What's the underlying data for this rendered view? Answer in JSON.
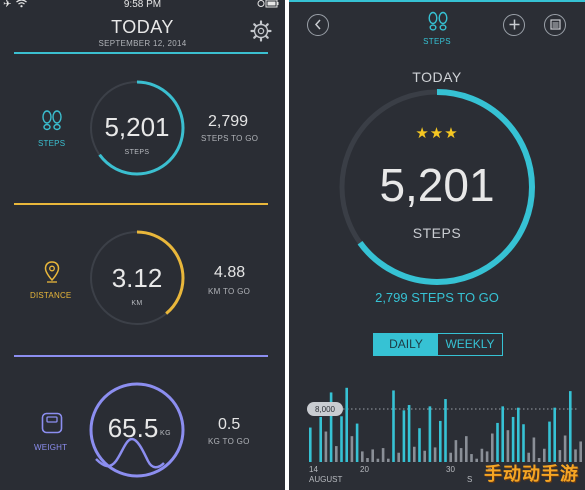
{
  "status_bar": {
    "time": "9:58 PM"
  },
  "left": {
    "title": "TODAY",
    "date": "SEPTEMBER 12, 2014",
    "metrics": [
      {
        "label": "STEPS",
        "value": "5,201",
        "unit": "STEPS",
        "side_value": "2,799",
        "side_label": "STEPS TO GO",
        "color": "#3bbfd0",
        "progress": 0.65,
        "icon": "footprints-icon"
      },
      {
        "label": "DISTANCE",
        "value": "3.12",
        "unit": "KM",
        "side_value": "4.88",
        "side_label": "KM TO GO",
        "color": "#e9b73b",
        "progress": 0.39,
        "icon": "location-pin-icon"
      },
      {
        "label": "WEIGHT",
        "value": "65.5",
        "unit": "KG",
        "side_value": "0.5",
        "side_label": "KG TO GO",
        "color": "#8c8ef0",
        "progress": 1.0,
        "icon": "scale-icon"
      }
    ]
  },
  "right": {
    "header_label": "STEPS",
    "today_label": "TODAY",
    "stars": "★★★",
    "value": "5,201",
    "unit": "STEPS",
    "to_go": "2,799 STEPS TO GO",
    "progress": 0.65,
    "accent": "#36c2d4",
    "toggle": {
      "daily": "DAILY",
      "weekly": "WEEKLY",
      "selected": "DAILY"
    },
    "chart": {
      "goal_label": "8,000",
      "ticks": [
        "14",
        "20",
        "30",
        "5"
      ],
      "month_labels": [
        "AUGUST",
        "S"
      ]
    }
  },
  "watermark": "手动动手游",
  "chart_data": {
    "type": "bar",
    "title": "",
    "goal_line": 8000,
    "x_tick_labels": [
      "14",
      "20",
      "30",
      "5"
    ],
    "series": [
      {
        "values": [
          5200,
          0,
          6800,
          4600,
          10500,
          2400,
          6900,
          11200,
          3900,
          5800,
          1600,
          600,
          1900,
          500,
          2100,
          500,
          10800,
          1400,
          7800,
          8600,
          2300,
          5100,
          1700,
          8400,
          2200,
          6200,
          9500,
          1400,
          3300,
          2100,
          3900,
          1200,
          500,
          2000,
          1600,
          4300,
          5900,
          8400,
          4800,
          6800,
          8200,
          5700,
          1400,
          3700,
          600,
          2000,
          6100,
          8200,
          1800,
          4000,
          10700,
          1900,
          3100
        ]
      }
    ]
  }
}
